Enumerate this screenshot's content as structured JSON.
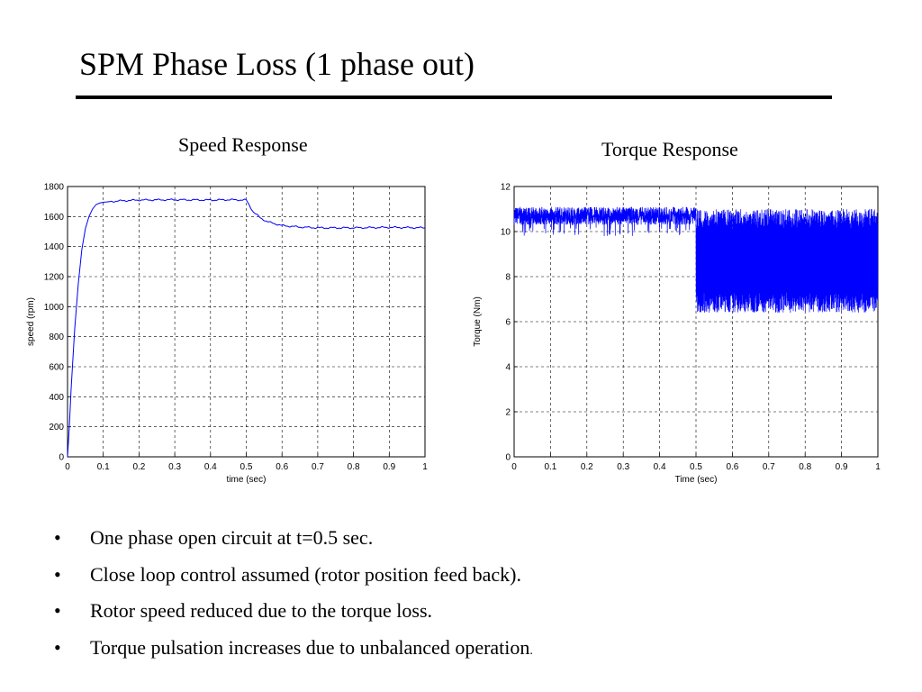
{
  "slide": {
    "title": "SPM Phase Loss (1 phase out)"
  },
  "bullets": [
    {
      "text": "One phase open circuit at t=0.5 sec.",
      "tail": ""
    },
    {
      "text": "Close loop control assumed (rotor position feed back).",
      "tail": ""
    },
    {
      "text": "Rotor speed reduced due to the torque loss.",
      "tail": ""
    },
    {
      "text": "Torque pulsation increases due to unbalanced operation",
      "tail": "."
    }
  ],
  "bullet_symbol": "•",
  "colors": {
    "line": "#0000ff",
    "grid": "#000000",
    "axis": "#000000"
  },
  "chart_data": [
    {
      "type": "line",
      "caption": "Speed Response",
      "title": "",
      "xlabel": "time (sec)",
      "ylabel": "speed (rpm)",
      "xlim": [
        0,
        1
      ],
      "ylim": [
        0,
        1800
      ],
      "xticks": [
        0,
        0.1,
        0.2,
        0.3,
        0.4,
        0.5,
        0.6,
        0.7,
        0.8,
        0.9,
        1
      ],
      "xtick_labels": [
        "0",
        "0.1",
        "0.2",
        "0.3",
        "0.4",
        "0.5",
        "0.6",
        "0.7",
        "0.8",
        "0.9",
        "1"
      ],
      "yticks": [
        0,
        200,
        400,
        600,
        800,
        1000,
        1200,
        1400,
        1600,
        1800
      ],
      "ytick_labels": [
        "0",
        "200",
        "400",
        "600",
        "800",
        "1000",
        "1200",
        "1400",
        "1600",
        "1800"
      ],
      "grid": "dashed",
      "series": [
        {
          "x": [
            0,
            0.005,
            0.01,
            0.02,
            0.03,
            0.04,
            0.05,
            0.06,
            0.07,
            0.08,
            0.09,
            0.1,
            0.12,
            0.15,
            0.2,
            0.3,
            0.4,
            0.45,
            0.5,
            0.51,
            0.52,
            0.54,
            0.56,
            0.6,
            0.65,
            0.7,
            0.8,
            0.9,
            1.0
          ],
          "y": [
            0,
            200,
            450,
            850,
            1150,
            1380,
            1520,
            1600,
            1650,
            1680,
            1690,
            1695,
            1700,
            1705,
            1710,
            1712,
            1710,
            1712,
            1710,
            1670,
            1630,
            1590,
            1565,
            1540,
            1530,
            1525,
            1525,
            1528,
            1525
          ]
        }
      ]
    },
    {
      "type": "line",
      "caption": "Torque Response",
      "title": "",
      "xlabel": "Time (sec)",
      "ylabel": "Torque (Nm)",
      "xlim": [
        0,
        1
      ],
      "ylim": [
        0,
        12
      ],
      "xticks": [
        0,
        0.1,
        0.2,
        0.3,
        0.4,
        0.5,
        0.6,
        0.7,
        0.8,
        0.9,
        1
      ],
      "xtick_labels": [
        "0",
        "0.1",
        "0.2",
        "0.3",
        "0.4",
        "0.5",
        "0.6",
        "0.7",
        "0.8",
        "0.9",
        "1"
      ],
      "yticks": [
        0,
        2,
        4,
        6,
        8,
        10,
        12
      ],
      "ytick_labels": [
        "0",
        "2",
        "4",
        "6",
        "8",
        "10",
        "12"
      ],
      "grid": "dashed",
      "series": [
        {
          "segments": [
            {
              "x_range": [
                0,
                0.5
              ],
              "mean": 10.7,
              "min": 10.2,
              "max": 11.0
            },
            {
              "x_range": [
                0.5,
                1.0
              ],
              "mean": 8.6,
              "min": 6.4,
              "max": 11.0
            }
          ]
        }
      ]
    }
  ]
}
